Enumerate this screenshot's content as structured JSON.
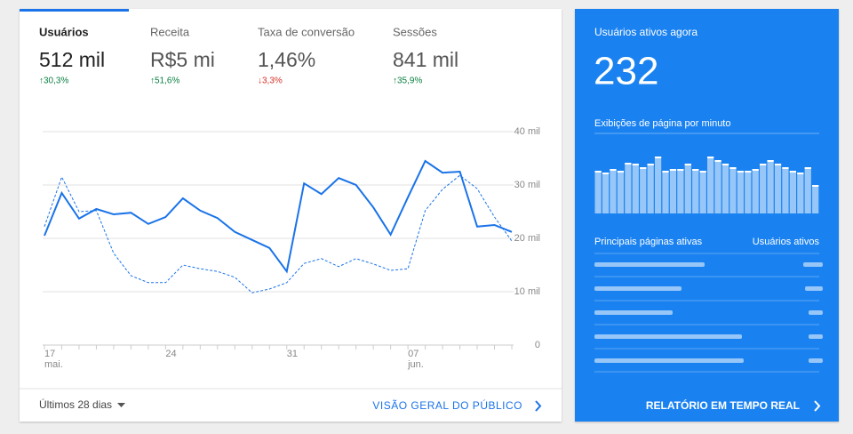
{
  "tabs": [
    {
      "label": "Usuários",
      "value": "512 mil",
      "change": "↑30,3%",
      "trend": "up"
    },
    {
      "label": "Receita",
      "value": "R$5 mi",
      "change": "↑51,6%",
      "trend": "up"
    },
    {
      "label": "Taxa de conversão",
      "value": "1,46%",
      "change": "↓3,3%",
      "trend": "down"
    },
    {
      "label": "Sessões",
      "value": "841 mil",
      "change": "↑35,9%",
      "trend": "up"
    }
  ],
  "chart_data": {
    "type": "line",
    "categories": [
      "17",
      null,
      null,
      null,
      null,
      null,
      null,
      "24",
      null,
      null,
      null,
      null,
      null,
      null,
      "31",
      null,
      null,
      null,
      null,
      null,
      null,
      "07",
      null,
      null,
      null,
      null,
      null,
      null
    ],
    "month_labels": [
      "mai.",
      null,
      null,
      null,
      null,
      null,
      null,
      null,
      null,
      null,
      null,
      null,
      null,
      null,
      null,
      null,
      null,
      null,
      null,
      null,
      null,
      "jun.",
      null,
      null,
      null,
      null,
      null,
      null
    ],
    "series": [
      {
        "color": "#1a73e8",
        "style": "solid",
        "values": [
          20500,
          28500,
          23700,
          25500,
          24500,
          24800,
          22700,
          24000,
          27500,
          25200,
          23800,
          21200,
          19700,
          18200,
          13800,
          30300,
          28300,
          31300,
          30000,
          25800,
          20700,
          27700,
          34500,
          32300,
          32500,
          22200,
          22500,
          21200
        ]
      },
      {
        "color": "#1a73e8",
        "style": "dashed",
        "values": [
          22200,
          31500,
          25000,
          25200,
          17200,
          13000,
          11700,
          11700,
          15000,
          14300,
          13800,
          12700,
          9800,
          10500,
          11700,
          15300,
          16200,
          14700,
          16200,
          15200,
          14000,
          14300,
          25200,
          29200,
          31800,
          29300,
          24000,
          19500
        ]
      }
    ],
    "ylim": [
      0,
      40000
    ],
    "yticks": [
      0,
      {
        "value": 10000,
        "label": "10 mil"
      },
      {
        "value": 20000,
        "label": "20 mil"
      },
      {
        "value": 30000,
        "label": "30 mil"
      },
      {
        "value": 40000,
        "label": "40 mil"
      }
    ],
    "grid": true
  },
  "footer": {
    "date_range": "Últimos 28 dias",
    "link": "VISÃO GERAL DO PÚBLICO"
  },
  "realtime": {
    "title": "Usuários ativos agora",
    "active_users": 232,
    "pageviews_label": "Exibições de página por minuto",
    "pageviews_per_minute": [
      48,
      46,
      50,
      48,
      57,
      56,
      52,
      56,
      64,
      48,
      50,
      50,
      56,
      50,
      48,
      64,
      60,
      56,
      52,
      48,
      48,
      50,
      56,
      60,
      56,
      52,
      48,
      46,
      52,
      32
    ],
    "table_header": [
      "Principais páginas ativas",
      "Usuários ativos"
    ],
    "link": "RELATÓRIO EM TEMPO REAL"
  }
}
